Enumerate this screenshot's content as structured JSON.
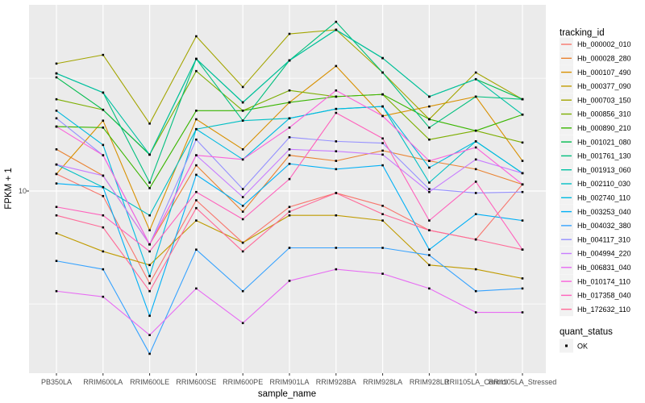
{
  "figure": {
    "panel_bg": "#EBEBEB",
    "grid_color": "#FFFFFF",
    "point_color": "#000000",
    "tick_text_color": "#4D4D4D"
  },
  "axes": {
    "x": {
      "title": "sample_name",
      "categories": [
        "PB350LA",
        "RRIM600LA",
        "RRIM600LE",
        "RRIM600SE",
        "RRIM600PE",
        "RRIM901LA",
        "RRIM928BA",
        "RRIM928LA",
        "RRIM928LB",
        "RRII105LA_Control",
        "RRII105LA_Stressed"
      ]
    },
    "y": {
      "title": "FPKM + 1",
      "scale": "log10",
      "tick_labels": [
        "10"
      ]
    }
  },
  "legends": [
    {
      "title": "tracking_id",
      "entries": [
        {
          "label": "Hb_000002_010",
          "color": "#F8766D"
        },
        {
          "label": "Hb_000028_280",
          "color": "#EA8331"
        },
        {
          "label": "Hb_000107_490",
          "color": "#D89000"
        },
        {
          "label": "Hb_000377_090",
          "color": "#C09B00"
        },
        {
          "label": "Hb_000703_150",
          "color": "#A3A500"
        },
        {
          "label": "Hb_000856_310",
          "color": "#7CAE00"
        },
        {
          "label": "Hb_000890_210",
          "color": "#39B600"
        },
        {
          "label": "Hb_001021_080",
          "color": "#00BB4E"
        },
        {
          "label": "Hb_001761_130",
          "color": "#00BF7D"
        },
        {
          "label": "Hb_001913_060",
          "color": "#00C1A3"
        },
        {
          "label": "Hb_002110_030",
          "color": "#00BFC4"
        },
        {
          "label": "Hb_002740_110",
          "color": "#00BAE0"
        },
        {
          "label": "Hb_003253_040",
          "color": "#00B0F6"
        },
        {
          "label": "Hb_004032_380",
          "color": "#35A2FF"
        },
        {
          "label": "Hb_004117_310",
          "color": "#9590FF"
        },
        {
          "label": "Hb_004994_220",
          "color": "#C77CFF"
        },
        {
          "label": "Hb_006831_040",
          "color": "#E76BF3"
        },
        {
          "label": "Hb_010174_110",
          "color": "#FA62DB"
        },
        {
          "label": "Hb_017358_040",
          "color": "#FF62BC"
        },
        {
          "label": "Hb_172632_110",
          "color": "#FF6A98"
        }
      ]
    },
    {
      "title": "quant_status",
      "entries": [
        {
          "label": "OK",
          "marker": "black-square-point",
          "color": "#000000"
        }
      ]
    }
  ],
  "chart_data": {
    "type": "line",
    "title": "",
    "xlabel": "sample_name",
    "ylabel": "FPKM + 1",
    "y_scale": "log10",
    "y_major_gridlines": [
      10
    ],
    "y_minor_gridlines": [
      3.16,
      31.6
    ],
    "legend_position": "right",
    "marker": "small black square (quant_status = OK) at every point",
    "x_categories": [
      "PB350LA",
      "RRIM600LA",
      "RRIM600LE",
      "RRIM600SE",
      "RRIM600PE",
      "RRIM901LA",
      "RRIM928BA",
      "RRIM928LA",
      "RRIM928LB",
      "RRII105LA_Control",
      "RRII105LA_Stressed"
    ],
    "series": [
      {
        "name": "Hb_000002_010",
        "color": "#F8766D",
        "values": [
          11.9,
          9.5,
          3.9,
          9.1,
          5.9,
          8.5,
          9.8,
          8.6,
          6.7,
          6.1,
          10.7
        ]
      },
      {
        "name": "Hb_000028_280",
        "color": "#EA8331",
        "values": [
          15.3,
          11.7,
          5.8,
          13.0,
          8.1,
          14.4,
          13.6,
          15.1,
          13.6,
          12.5,
          10.7
        ]
      },
      {
        "name": "Hb_000107_490",
        "color": "#D89000",
        "values": [
          11.9,
          20.5,
          6.7,
          20.8,
          15.3,
          24.7,
          35.8,
          21.5,
          23.7,
          26.2,
          13.6
        ]
      },
      {
        "name": "Hb_000377_090",
        "color": "#C09B00",
        "values": [
          6.5,
          5.4,
          4.7,
          7.4,
          5.9,
          7.8,
          7.8,
          7.4,
          4.7,
          4.5,
          4.1
        ]
      },
      {
        "name": "Hb_000703_150",
        "color": "#A3A500",
        "values": [
          36.7,
          40.1,
          19.9,
          48.5,
          28.9,
          49.7,
          51.8,
          33.5,
          20.8,
          33.5,
          25.5
        ]
      },
      {
        "name": "Hb_000856_310",
        "color": "#7CAE00",
        "values": [
          25.5,
          22.9,
          14.5,
          34.0,
          22.7,
          27.9,
          26.2,
          26.8,
          16.9,
          18.5,
          16.4
        ]
      },
      {
        "name": "Hb_000890_210",
        "color": "#39B600",
        "values": [
          19.3,
          19.1,
          10.3,
          22.7,
          22.7,
          24.7,
          26.2,
          26.8,
          20.8,
          18.5,
          21.8
        ]
      },
      {
        "name": "Hb_001021_080",
        "color": "#00BB4E",
        "values": [
          31.9,
          22.9,
          14.5,
          38.5,
          24.7,
          37.9,
          51.8,
          38.8,
          26.2,
          31.3,
          25.5
        ]
      },
      {
        "name": "Hb_001761_130",
        "color": "#00BF7D",
        "values": [
          33.2,
          27.3,
          10.9,
          38.5,
          20.5,
          37.9,
          56.2,
          33.5,
          19.1,
          26.2,
          25.5
        ]
      },
      {
        "name": "Hb_001913_060",
        "color": "#00C1A3",
        "values": [
          33.2,
          27.3,
          14.5,
          38.5,
          24.7,
          37.9,
          51.8,
          38.8,
          26.2,
          31.3,
          21.8
        ]
      },
      {
        "name": "Hb_002110_030",
        "color": "#00BFC4",
        "values": [
          13.1,
          10.4,
          7.8,
          18.8,
          20.5,
          21.0,
          23.1,
          23.7,
          10.9,
          16.6,
          12.0
        ]
      },
      {
        "name": "Hb_002740_110",
        "color": "#00BAE0",
        "values": [
          22.7,
          16.0,
          4.2,
          18.8,
          13.8,
          21.0,
          23.1,
          23.7,
          12.7,
          16.6,
          12.0
        ]
      },
      {
        "name": "Hb_003253_040",
        "color": "#00B0F6",
        "values": [
          10.8,
          10.4,
          2.8,
          11.8,
          8.6,
          13.2,
          12.5,
          13.0,
          5.5,
          7.9,
          7.4
        ]
      },
      {
        "name": "Hb_004032_380",
        "color": "#35A2FF",
        "values": [
          4.9,
          4.5,
          1.9,
          5.5,
          3.6,
          5.6,
          5.6,
          5.6,
          5.2,
          3.6,
          3.7
        ]
      },
      {
        "name": "Hb_004117_310",
        "color": "#9590FF",
        "values": [
          21.0,
          14.4,
          5.8,
          16.9,
          10.2,
          17.3,
          16.6,
          16.3,
          10.2,
          9.8,
          9.9
        ]
      },
      {
        "name": "Hb_004994_220",
        "color": "#C77CFF",
        "values": [
          13.1,
          11.7,
          5.8,
          14.4,
          9.4,
          15.3,
          15.0,
          14.5,
          9.9,
          13.8,
          12.0
        ]
      },
      {
        "name": "Hb_006831_040",
        "color": "#E76BF3",
        "values": [
          3.6,
          3.4,
          2.3,
          3.7,
          2.6,
          4.0,
          4.5,
          4.3,
          3.7,
          2.9,
          2.9
        ]
      },
      {
        "name": "Hb_010174_110",
        "color": "#FA62DB",
        "values": [
          19.3,
          14.4,
          5.8,
          14.4,
          13.8,
          19.1,
          27.9,
          21.5,
          13.6,
          15.6,
          10.7
        ]
      },
      {
        "name": "Hb_017358_040",
        "color": "#FF62BC",
        "values": [
          8.5,
          7.8,
          5.4,
          9.9,
          7.5,
          11.3,
          22.2,
          17.1,
          7.4,
          11.0,
          5.5
        ]
      },
      {
        "name": "Hb_172632_110",
        "color": "#FF6A98",
        "values": [
          7.8,
          6.9,
          3.6,
          8.4,
          5.4,
          8.1,
          9.8,
          7.9,
          6.7,
          6.1,
          5.5
        ]
      }
    ]
  }
}
